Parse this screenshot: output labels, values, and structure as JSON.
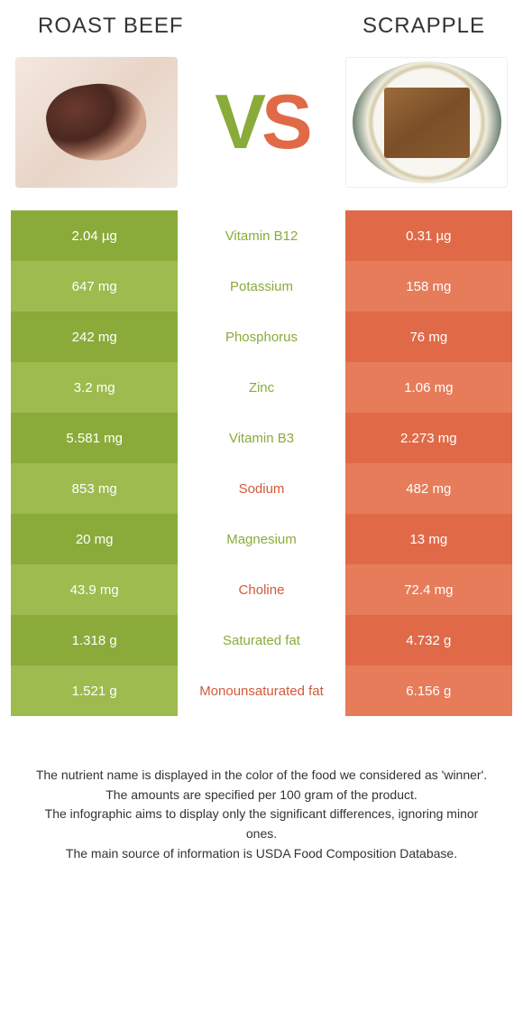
{
  "colors": {
    "left_dark": "#8aab3a",
    "left_light": "#9dbb4e",
    "right_dark": "#e06a47",
    "right_light": "#e67c5a",
    "name_left_winner": "#8aab3a",
    "name_right_winner": "#d15a3a"
  },
  "foods": {
    "left": "Roast Beef",
    "right": "Scrapple"
  },
  "vs": {
    "v": "V",
    "s": "S"
  },
  "rows": [
    {
      "left": "2.04 µg",
      "name": "Vitamin B12",
      "right": "0.31 µg",
      "winner": "left"
    },
    {
      "left": "647 mg",
      "name": "Potassium",
      "right": "158 mg",
      "winner": "left"
    },
    {
      "left": "242 mg",
      "name": "Phosphorus",
      "right": "76 mg",
      "winner": "left"
    },
    {
      "left": "3.2 mg",
      "name": "Zinc",
      "right": "1.06 mg",
      "winner": "left"
    },
    {
      "left": "5.581 mg",
      "name": "Vitamin B3",
      "right": "2.273 mg",
      "winner": "left"
    },
    {
      "left": "853 mg",
      "name": "Sodium",
      "right": "482 mg",
      "winner": "right"
    },
    {
      "left": "20 mg",
      "name": "Magnesium",
      "right": "13 mg",
      "winner": "left"
    },
    {
      "left": "43.9 mg",
      "name": "Choline",
      "right": "72.4 mg",
      "winner": "right"
    },
    {
      "left": "1.318 g",
      "name": "Saturated fat",
      "right": "4.732 g",
      "winner": "left"
    },
    {
      "left": "1.521 g",
      "name": "Monounsaturated fat",
      "right": "6.156 g",
      "winner": "right"
    }
  ],
  "footnotes": [
    "The nutrient name is displayed in the color of the food we considered as 'winner'.",
    "The amounts are specified per 100 gram of the product.",
    "The infographic aims to display only the significant differences, ignoring minor ones.",
    "The main source of information is USDA Food Composition Database."
  ]
}
